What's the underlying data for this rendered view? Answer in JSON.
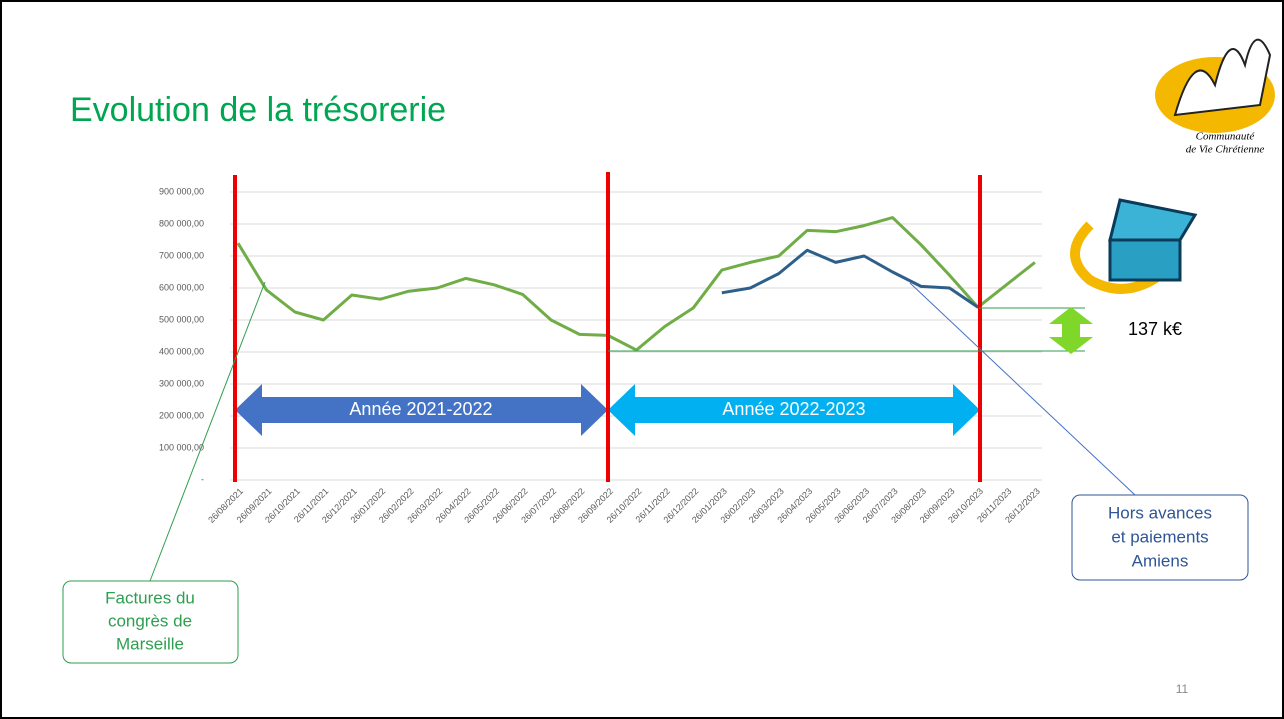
{
  "title": "Evolution de la trésorerie",
  "page_number": "11",
  "logo": {
    "line1": "Communauté",
    "line2": "de Vie Chrétienne"
  },
  "annotations": {
    "year1": "Année 2021-2022",
    "year2": "Année 2022-2023",
    "difference": "137 k€",
    "callout_left": [
      "Factures du",
      "congrès de",
      "Marseille"
    ],
    "callout_right": [
      "Hors avances",
      "et paiements",
      "Amiens"
    ]
  },
  "chart_data": {
    "type": "line",
    "categories": [
      "26/08/2021",
      "26/09/2021",
      "26/10/2021",
      "26/11/2021",
      "26/12/2021",
      "26/01/2022",
      "26/02/2022",
      "26/03/2022",
      "26/04/2022",
      "26/05/2022",
      "26/06/2022",
      "26/07/2022",
      "26/08/2022",
      "26/09/2022",
      "26/10/2022",
      "26/11/2022",
      "26/12/2022",
      "26/01/2023",
      "26/02/2023",
      "26/03/2023",
      "26/04/2023",
      "26/05/2023",
      "26/06/2023",
      "26/07/2023",
      "26/08/2023",
      "26/09/2023",
      "26/10/2023",
      "26/11/2023",
      "26/12/2023"
    ],
    "series": [
      {
        "name": "Trésorerie",
        "color": "#70ad47",
        "values": [
          740000,
          594000,
          525000,
          500000,
          578000,
          565000,
          590000,
          600000,
          630000,
          610000,
          580000,
          500000,
          455000,
          452000,
          406000,
          480000,
          538000,
          656000,
          680000,
          700000,
          780000,
          776000,
          795000,
          820000,
          735000,
          640000,
          540000,
          610000,
          680000
        ]
      },
      {
        "name": "Hors avances et paiements Amiens",
        "color": "#2e5f8a",
        "values": [
          null,
          null,
          null,
          null,
          null,
          null,
          null,
          null,
          null,
          null,
          null,
          null,
          null,
          null,
          null,
          null,
          null,
          585000,
          600000,
          645000,
          718000,
          680000,
          700000,
          650000,
          605000,
          600000,
          540000,
          null,
          null
        ]
      }
    ],
    "ylim": [
      0,
      900000
    ],
    "yticks": [
      {
        "value": 0,
        "label": "-"
      },
      {
        "value": 100000,
        "label": "100 000,00"
      },
      {
        "value": 200000,
        "label": "200 000,00"
      },
      {
        "value": 300000,
        "label": "300 000,00"
      },
      {
        "value": 400000,
        "label": "400 000,00"
      },
      {
        "value": 500000,
        "label": "500 000,00"
      },
      {
        "value": 600000,
        "label": "600 000,00"
      },
      {
        "value": 700000,
        "label": "700 000,00"
      },
      {
        "value": 800000,
        "label": "800 000,00"
      },
      {
        "value": 900000,
        "label": "900 000,00"
      }
    ],
    "grid": true
  }
}
